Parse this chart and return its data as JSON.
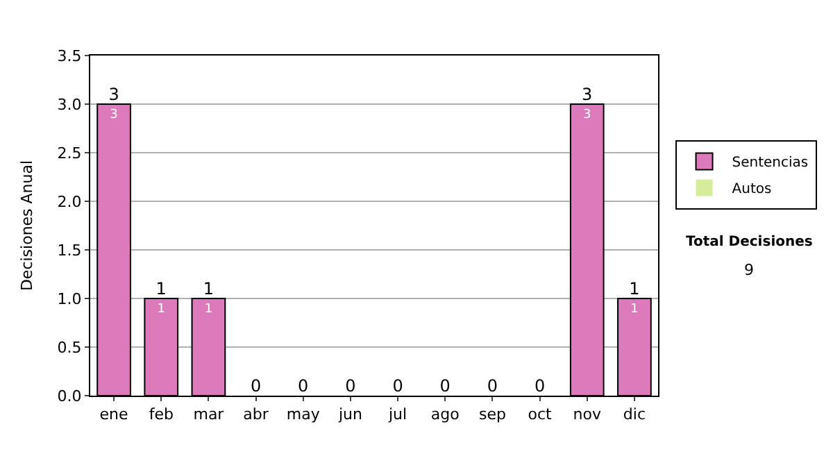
{
  "chart_data": {
    "type": "bar",
    "stacked": true,
    "ylabel": "Decisiones Anual",
    "categories": [
      "ene",
      "feb",
      "mar",
      "abr",
      "may",
      "jun",
      "jul",
      "ago",
      "sep",
      "oct",
      "nov",
      "dic"
    ],
    "series": [
      {
        "name": "Sentencias",
        "color": "#dd7abb",
        "values": [
          3,
          1,
          1,
          0,
          0,
          0,
          0,
          0,
          0,
          0,
          3,
          1
        ],
        "value_labels": [
          "3",
          "1",
          "1",
          null,
          null,
          null,
          null,
          null,
          null,
          null,
          "3",
          "1"
        ]
      },
      {
        "name": "Autos",
        "color": "#d5ec9c",
        "values": [
          0,
          0,
          0,
          0,
          0,
          0,
          0,
          0,
          0,
          0,
          0,
          0
        ]
      }
    ],
    "totals": [
      "3",
      "1",
      "1",
      "0",
      "0",
      "0",
      "0",
      "0",
      "0",
      "0",
      "3",
      "1"
    ],
    "ylim": [
      0,
      3.5
    ],
    "yticks": [
      "0.0",
      "0.5",
      "1.0",
      "1.5",
      "2.0",
      "2.5",
      "3.0",
      "3.5"
    ],
    "grid": "y",
    "legend": "right",
    "annotations": [
      "Total Decisiones",
      "9"
    ]
  }
}
